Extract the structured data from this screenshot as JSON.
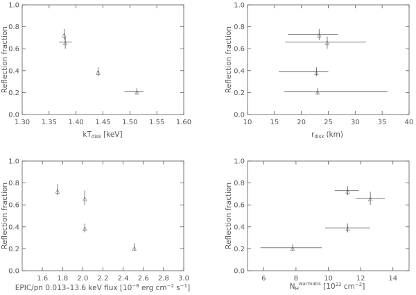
{
  "chart_data": [
    {
      "type": "scatter",
      "xlabel": "kT_disk [keV]",
      "xlabel_main": "kT",
      "xlabel_sub": "disk",
      "xlabel_unit": "[keV]",
      "ylabel": "Reflection fraction",
      "xlim": [
        1.3,
        1.6
      ],
      "ylim": [
        0.0,
        1.0
      ],
      "xticks": [
        "1.30",
        "1.35",
        "1.40",
        "1.45",
        "1.50",
        "1.55",
        "1.60"
      ],
      "yticks": [
        "0.0",
        "0.2",
        "0.4",
        "0.6",
        "0.8",
        "1.0"
      ],
      "grid": false,
      "points": [
        {
          "x": 1.378,
          "y": 0.73,
          "xerr": [
            1.377,
            1.379
          ],
          "yerr": [
            0.68,
            0.78
          ]
        },
        {
          "x": 1.38,
          "y": 0.66,
          "xerr": [
            1.368,
            1.392
          ],
          "yerr": [
            0.6,
            0.71
          ]
        },
        {
          "x": 1.441,
          "y": 0.39,
          "xerr": [
            1.439,
            1.443
          ],
          "yerr": [
            0.35,
            0.43
          ]
        },
        {
          "x": 1.513,
          "y": 0.21,
          "xerr": [
            1.49,
            1.525
          ],
          "yerr": [
            0.18,
            0.24
          ]
        }
      ]
    },
    {
      "type": "scatter",
      "xlabel": "r_disk (km)",
      "xlabel_main": "r",
      "xlabel_sub": "disk",
      "xlabel_unit": "(km)",
      "ylabel": "Reflection fraction",
      "xlim": [
        10,
        40
      ],
      "ylim": [
        0.0,
        1.0
      ],
      "xticks": [
        "10",
        "15",
        "20",
        "25",
        "30",
        "35",
        "40"
      ],
      "yticks": [
        "0.0",
        "0.2",
        "0.4",
        "0.6",
        "0.8",
        "1.0"
      ],
      "grid": false,
      "points": [
        {
          "x": 23.3,
          "y": 0.73,
          "xerr": [
            17.5,
            26.8
          ],
          "yerr": [
            0.68,
            0.78
          ]
        },
        {
          "x": 24.8,
          "y": 0.66,
          "xerr": [
            17.0,
            32.0
          ],
          "yerr": [
            0.6,
            0.71
          ]
        },
        {
          "x": 22.8,
          "y": 0.39,
          "xerr": [
            15.8,
            25.0
          ],
          "yerr": [
            0.35,
            0.43
          ]
        },
        {
          "x": 23.0,
          "y": 0.21,
          "xerr": [
            16.8,
            36.0
          ],
          "yerr": [
            0.18,
            0.24
          ]
        }
      ]
    },
    {
      "type": "scatter",
      "xlabel": "EPIC/pn 0.013-13.6 keV flux [10^-8 erg cm^-2 s^-1]",
      "xlabel_main": "EPIC/pn 0.013–13.6 keV flux [10",
      "xlabel_sup1": "−8",
      "xlabel_mid": " erg cm",
      "xlabel_sup2": "−2",
      "xlabel_mid2": " s",
      "xlabel_sup3": "−1",
      "xlabel_end": "]",
      "ylabel": "Reflection fraction",
      "xlim": [
        1.4,
        3.0
      ],
      "ylim": [
        0.0,
        1.0
      ],
      "xticks": [
        "1.6",
        "1.8",
        "2.0",
        "2.2",
        "2.4",
        "2.6",
        "2.8",
        "3.0"
      ],
      "xtick_values": [
        1.6,
        1.8,
        2.0,
        2.2,
        2.4,
        2.6,
        2.8,
        3.0
      ],
      "yticks": [
        "0.0",
        "0.2",
        "0.4",
        "0.6",
        "0.8",
        "1.0"
      ],
      "grid": false,
      "points": [
        {
          "x": 1.75,
          "y": 0.73,
          "xerr": [
            1.745,
            1.755
          ],
          "yerr": [
            0.69,
            0.79
          ]
        },
        {
          "x": 2.02,
          "y": 0.66,
          "xerr": [
            2.015,
            2.025
          ],
          "yerr": [
            0.6,
            0.73
          ]
        },
        {
          "x": 2.02,
          "y": 0.39,
          "xerr": [
            2.015,
            2.025
          ],
          "yerr": [
            0.35,
            0.43
          ]
        },
        {
          "x": 2.51,
          "y": 0.21,
          "xerr": [
            2.505,
            2.515
          ],
          "yerr": [
            0.18,
            0.25
          ]
        }
      ]
    },
    {
      "type": "scatter",
      "xlabel": "N_H^warmabs [10^22 cm^-2]",
      "xlabel_main": "N",
      "xlabel_sub": "H",
      "xlabel_sup": "warmabs",
      "xlabel_unit_a": " [10",
      "xlabel_sup1": "22",
      "xlabel_unit_b": " cm",
      "xlabel_sup2": "−2",
      "xlabel_unit_c": "]",
      "ylabel": "Reflection fraction",
      "xlim": [
        5,
        15
      ],
      "ylim": [
        0.0,
        1.0
      ],
      "xticks": [
        "6",
        "8",
        "10",
        "12",
        "14"
      ],
      "xtick_values": [
        6,
        8,
        10,
        12,
        14
      ],
      "yticks": [
        "0.0",
        "0.2",
        "0.4",
        "0.6",
        "0.8",
        "1.0"
      ],
      "grid": false,
      "points": [
        {
          "x": 11.2,
          "y": 0.73,
          "xerr": [
            10.4,
            11.9
          ],
          "yerr": [
            0.69,
            0.77
          ]
        },
        {
          "x": 12.6,
          "y": 0.66,
          "xerr": [
            11.7,
            13.5
          ],
          "yerr": [
            0.6,
            0.72
          ]
        },
        {
          "x": 11.2,
          "y": 0.39,
          "xerr": [
            9.8,
            12.6
          ],
          "yerr": [
            0.35,
            0.43
          ]
        },
        {
          "x": 7.8,
          "y": 0.21,
          "xerr": [
            5.8,
            9.6
          ],
          "yerr": [
            0.18,
            0.24
          ]
        }
      ]
    }
  ],
  "marker_glyph": "△"
}
